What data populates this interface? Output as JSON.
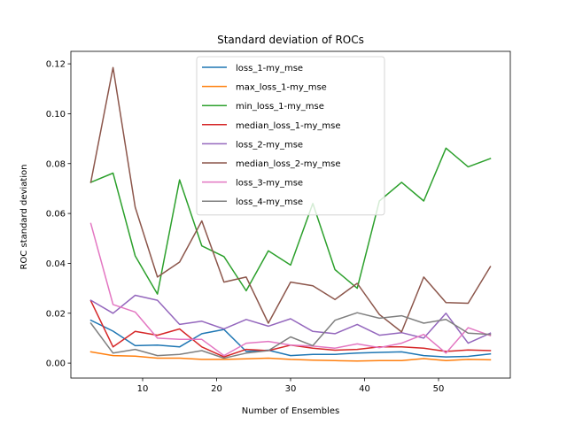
{
  "chart_data": {
    "type": "line",
    "title": "Standard deviation of ROCs",
    "xlabel": "Number of Ensembles",
    "ylabel": "ROC standard deviation",
    "xlim": [
      0.3,
      59.7
    ],
    "ylim": [
      -0.006,
      0.125
    ],
    "xticks": [
      10,
      20,
      30,
      40,
      50
    ],
    "yticks": [
      0.0,
      0.02,
      0.04,
      0.06,
      0.08,
      0.1,
      0.12
    ],
    "ytick_labels": [
      "0.00",
      "0.02",
      "0.04",
      "0.06",
      "0.08",
      "0.10",
      "0.12"
    ],
    "legend_position": "upper-center",
    "grid": false,
    "x": [
      3,
      6,
      9,
      12,
      15,
      18,
      21,
      24,
      27,
      30,
      33,
      36,
      39,
      42,
      45,
      48,
      51,
      54,
      57
    ],
    "series": [
      {
        "name": "loss_1-my_mse",
        "color": "#1f77b4",
        "values": [
          0.0172,
          0.0128,
          0.007,
          0.0072,
          0.0065,
          0.0118,
          0.0135,
          0.0047,
          0.0052,
          0.003,
          0.0035,
          0.0035,
          0.004,
          0.0043,
          0.0045,
          0.003,
          0.0025,
          0.0027,
          0.0037
        ]
      },
      {
        "name": "max_loss_1-my_mse",
        "color": "#ff7f0e",
        "values": [
          0.0045,
          0.003,
          0.0028,
          0.002,
          0.002,
          0.0015,
          0.0015,
          0.0017,
          0.002,
          0.0015,
          0.0012,
          0.001,
          0.0008,
          0.001,
          0.001,
          0.0018,
          0.001,
          0.0015,
          0.0013
        ]
      },
      {
        "name": "min_loss_1-my_mse",
        "color": "#2ca02c",
        "values": [
          0.0725,
          0.0762,
          0.043,
          0.0277,
          0.0735,
          0.047,
          0.0427,
          0.029,
          0.045,
          0.0393,
          0.064,
          0.0375,
          0.03,
          0.065,
          0.0725,
          0.065,
          0.0862,
          0.0787,
          0.082
        ]
      },
      {
        "name": "median_loss_1-my_mse",
        "color": "#d62728",
        "values": [
          0.025,
          0.0065,
          0.0127,
          0.0112,
          0.0137,
          0.0065,
          0.0025,
          0.0055,
          0.005,
          0.0072,
          0.006,
          0.0052,
          0.0055,
          0.0065,
          0.0065,
          0.006,
          0.0047,
          0.0053,
          0.005
        ]
      },
      {
        "name": "loss_2-my_mse",
        "color": "#9467bd",
        "values": [
          0.0252,
          0.02,
          0.0272,
          0.0252,
          0.0155,
          0.0168,
          0.0137,
          0.0175,
          0.0148,
          0.0178,
          0.0127,
          0.0118,
          0.0155,
          0.0112,
          0.0122,
          0.01,
          0.02,
          0.008,
          0.012
        ]
      },
      {
        "name": "median_loss_2-my_mse",
        "color": "#8c564b",
        "values": [
          0.0725,
          0.1185,
          0.0625,
          0.0345,
          0.0405,
          0.057,
          0.0325,
          0.0345,
          0.016,
          0.0325,
          0.031,
          0.0255,
          0.032,
          0.0195,
          0.0125,
          0.0345,
          0.0243,
          0.024,
          0.0387
        ]
      },
      {
        "name": "loss_3-my_mse",
        "color": "#e377c2",
        "values": [
          0.056,
          0.0235,
          0.0205,
          0.01,
          0.0095,
          0.0095,
          0.003,
          0.008,
          0.0087,
          0.0072,
          0.0068,
          0.006,
          0.0077,
          0.0062,
          0.008,
          0.0115,
          0.004,
          0.0142,
          0.011
        ]
      },
      {
        "name": "loss_4-my_mse",
        "color": "#7f7f7f",
        "values": [
          0.016,
          0.004,
          0.0055,
          0.003,
          0.0035,
          0.005,
          0.002,
          0.004,
          0.005,
          0.0105,
          0.007,
          0.0172,
          0.0202,
          0.018,
          0.019,
          0.016,
          0.0175,
          0.012,
          0.0115
        ]
      }
    ]
  }
}
